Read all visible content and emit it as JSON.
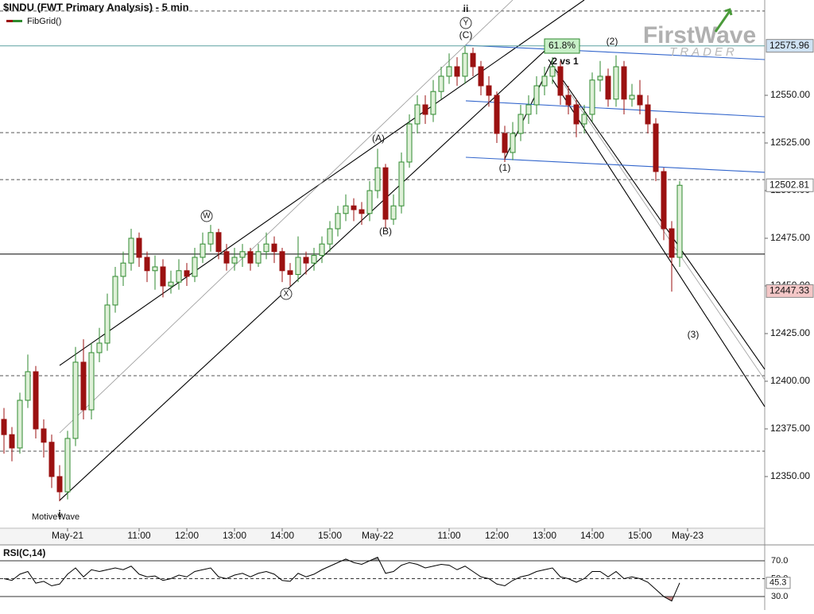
{
  "chart_data": [
    {
      "type": "candlestick",
      "title": "$INDU (FWT Primary Analysis) - 5 min",
      "indicator": "FibGrid()",
      "footer": "MotiveWave",
      "logo": {
        "brand": "FirstWave",
        "sub": "TRADER"
      },
      "x": [
        -80,
        -70,
        -60,
        -50,
        -40,
        -30,
        -20,
        -10,
        0,
        10,
        20,
        30,
        40,
        50,
        60,
        70,
        80,
        90,
        100,
        110,
        120,
        130,
        140,
        150,
        160,
        170,
        180,
        190,
        200,
        210,
        220,
        230,
        240,
        250,
        260,
        270,
        280,
        290,
        300,
        310,
        320,
        330,
        340,
        350,
        360,
        370,
        380,
        390,
        400,
        410,
        420,
        430,
        440,
        450,
        460,
        470,
        480,
        490,
        500,
        510,
        520,
        530,
        540,
        550,
        560,
        570,
        580,
        590,
        600,
        610,
        620,
        630,
        640,
        650,
        660,
        670,
        680,
        690,
        700,
        710,
        720,
        730,
        740,
        750,
        760,
        770
      ],
      "open": [
        12380,
        12372,
        12365,
        12390,
        12405,
        12375,
        12368,
        12350,
        12342,
        12370,
        12410,
        12385,
        12415,
        12420,
        12440,
        12455,
        12462,
        12475,
        12465,
        12458,
        12460,
        12450,
        12452,
        12458,
        12455,
        12465,
        12472,
        12478,
        12468,
        12462,
        12465,
        12468,
        12462,
        12468,
        12472,
        12468,
        12458,
        12456,
        12465,
        12462,
        12466,
        12472,
        12480,
        12488,
        12492,
        12490,
        12488,
        12500,
        12512,
        12485,
        12492,
        12515,
        12535,
        12545,
        12540,
        12552,
        12560,
        12565,
        12560,
        12572,
        12565,
        12555,
        12550,
        12530,
        12520,
        12530,
        12540,
        12545,
        12555,
        12560,
        12565,
        12550,
        12545,
        12535,
        12540,
        12558,
        12560,
        12548,
        12565,
        12548,
        12550,
        12545,
        12535,
        12510,
        12480,
        12465
      ],
      "high": [
        12386,
        12376,
        12394,
        12414,
        12408,
        12380,
        12372,
        12356,
        12374,
        12418,
        12422,
        12420,
        12428,
        12446,
        12460,
        12468,
        12480,
        12478,
        12468,
        12466,
        12464,
        12458,
        12464,
        12462,
        12470,
        12478,
        12482,
        12480,
        12472,
        12470,
        12472,
        12470,
        12472,
        12478,
        12476,
        12470,
        12462,
        12476,
        12468,
        12470,
        12476,
        12484,
        12492,
        12498,
        12496,
        12494,
        12505,
        12522,
        12514,
        12498,
        12520,
        12540,
        12550,
        12550,
        12558,
        12565,
        12572,
        12570,
        12576,
        12575,
        12568,
        12560,
        12552,
        12534,
        12536,
        12545,
        12550,
        12560,
        12565,
        12570,
        12568,
        12555,
        12548,
        12545,
        12562,
        12568,
        12564,
        12571,
        12568,
        12556,
        12558,
        12550,
        12538,
        12512,
        12484,
        12505
      ],
      "low": [
        12362,
        12358,
        12362,
        12386,
        12370,
        12360,
        12344,
        12337,
        12338,
        12366,
        12380,
        12380,
        12410,
        12416,
        12436,
        12450,
        12458,
        12460,
        12452,
        12448,
        12444,
        12446,
        12448,
        12450,
        12452,
        12462,
        12468,
        12464,
        12458,
        12458,
        12460,
        12458,
        12460,
        12464,
        12462,
        12452,
        12450,
        12452,
        12456,
        12458,
        12462,
        12468,
        12476,
        12484,
        12484,
        12482,
        12484,
        12496,
        12480,
        12482,
        12488,
        12512,
        12530,
        12535,
        12536,
        12548,
        12556,
        12555,
        12556,
        12560,
        12550,
        12544,
        12525,
        12515,
        12516,
        12526,
        12535,
        12540,
        12550,
        12556,
        12545,
        12540,
        12528,
        12530,
        12536,
        12552,
        12544,
        12544,
        12540,
        12544,
        12540,
        12530,
        12505,
        12474,
        12447,
        12460
      ],
      "close": [
        12372,
        12365,
        12390,
        12405,
        12375,
        12368,
        12350,
        12342,
        12370,
        12410,
        12385,
        12415,
        12420,
        12440,
        12455,
        12462,
        12475,
        12465,
        12458,
        12460,
        12450,
        12452,
        12458,
        12455,
        12465,
        12472,
        12478,
        12468,
        12462,
        12465,
        12468,
        12462,
        12468,
        12472,
        12468,
        12458,
        12456,
        12465,
        12462,
        12466,
        12472,
        12480,
        12488,
        12492,
        12490,
        12488,
        12500,
        12512,
        12485,
        12492,
        12515,
        12535,
        12545,
        12540,
        12552,
        12560,
        12565,
        12560,
        12572,
        12565,
        12555,
        12550,
        12530,
        12520,
        12530,
        12540,
        12545,
        12555,
        12560,
        12565,
        12550,
        12545,
        12535,
        12540,
        12558,
        12560,
        12548,
        12565,
        12548,
        12550,
        12545,
        12535,
        12510,
        12480,
        12465,
        12502.81
      ],
      "up_color": "#2f8a2f",
      "down_color": "#9b1111",
      "xlim": [
        -85,
        877
      ],
      "ylim": [
        12322.9,
        12600
      ],
      "xticks": [
        {
          "value": 0,
          "label": "May-21"
        },
        {
          "value": 90,
          "label": "11:00"
        },
        {
          "value": 150,
          "label": "12:00"
        },
        {
          "value": 210,
          "label": "13:00"
        },
        {
          "value": 270,
          "label": "14:00"
        },
        {
          "value": 330,
          "label": "15:00"
        },
        {
          "value": 390,
          "label": "May-22"
        },
        {
          "value": 480,
          "label": "11:00"
        },
        {
          "value": 540,
          "label": "12:00"
        },
        {
          "value": 600,
          "label": "13:00"
        },
        {
          "value": 660,
          "label": "14:00"
        },
        {
          "value": 720,
          "label": "15:00"
        },
        {
          "value": 780,
          "label": "May-23"
        }
      ],
      "yticks": [
        {
          "value": 12350,
          "label": "12350.00"
        },
        {
          "value": 12375,
          "label": "12375.00"
        },
        {
          "value": 12400,
          "label": "12400.00"
        },
        {
          "value": 12425,
          "label": "12425.00"
        },
        {
          "value": 12450,
          "label": "12450.00"
        },
        {
          "value": 12475,
          "label": "12475.00"
        },
        {
          "value": 12500,
          "label": "12500.00"
        },
        {
          "value": 12525,
          "label": "12525.00"
        },
        {
          "value": 12550,
          "label": "12550.00"
        }
      ],
      "price_markers": [
        {
          "value": 12575.96,
          "color": "#cfe2f3"
        },
        {
          "value": 12502.81,
          "color": "#ffffff"
        },
        {
          "value": 12447.33,
          "color": "#f4c7c7"
        }
      ],
      "fib_levels": [
        {
          "value": 12594.2,
          "dashed": true
        },
        {
          "value": 12530.4,
          "dashed": true
        },
        {
          "value": 12505.8,
          "dashed": true
        },
        {
          "value": 12466.7,
          "dashed": false
        },
        {
          "value": 12402.9,
          "dashed": true
        },
        {
          "value": 12363.3,
          "dashed": true
        }
      ],
      "trendlines": [
        {
          "x": [
            -10,
            650
          ],
          "y": [
            12408.3,
            12600
          ],
          "color": "#000000"
        },
        {
          "x": [
            -10,
            610
          ],
          "y": [
            12337.5,
            12577.1
          ],
          "color": "#000000"
        },
        {
          "x": [
            -10,
            560
          ],
          "y": [
            12372.9,
            12600
          ],
          "color": "#999999"
        },
        {
          "x": [
            605,
            877
          ],
          "y": [
            12568.75,
            12406.25
          ],
          "color": "#000000"
        },
        {
          "x": [
            610,
            877
          ],
          "y": [
            12564.6,
            12400.8
          ],
          "color": "#999999"
        },
        {
          "x": [
            610,
            877
          ],
          "y": [
            12558.3,
            12386.7
          ],
          "color": "#000000"
        },
        {
          "x": [
            550,
            610
          ],
          "y": [
            12516.7,
            12568.75
          ],
          "color": "#000000"
        },
        {
          "x": [
            501,
            877
          ],
          "y": [
            12576.25,
            12568.75
          ],
          "color": "#3366cc"
        },
        {
          "x": [
            501,
            877
          ],
          "y": [
            12547.1,
            12538.75
          ],
          "color": "#3366cc"
        },
        {
          "x": [
            501,
            877
          ],
          "y": [
            12517.5,
            12509.6
          ],
          "color": "#3366cc"
        }
      ],
      "annotations": [
        "ii",
        "Y",
        "(C)",
        "61.8%",
        "2 vs 1",
        "(2)",
        "(1)",
        "(3)",
        "(A)",
        "(B)",
        "W",
        "X",
        "i"
      ]
    },
    {
      "type": "line",
      "title": "RSI(C,14)",
      "color": "#000000",
      "values": [
        50,
        48,
        55,
        58,
        45,
        47,
        42,
        44,
        55,
        62,
        52,
        60,
        58,
        60,
        62,
        60,
        64,
        55,
        52,
        53,
        48,
        50,
        54,
        52,
        58,
        60,
        62,
        52,
        50,
        54,
        56,
        52,
        56,
        58,
        55,
        48,
        47,
        56,
        52,
        55,
        60,
        64,
        68,
        72,
        68,
        66,
        70,
        74,
        56,
        58,
        65,
        68,
        66,
        62,
        64,
        66,
        65,
        60,
        64,
        58,
        52,
        50,
        44,
        42,
        48,
        52,
        54,
        58,
        60,
        62,
        52,
        50,
        46,
        50,
        58,
        58,
        52,
        58,
        50,
        52,
        50,
        46,
        38,
        30,
        25,
        45.3
      ],
      "value_labels": [
        null,
        null,
        null,
        null,
        null,
        null,
        null,
        null,
        null,
        null,
        null,
        null,
        null,
        null,
        null,
        null,
        null,
        null,
        null,
        null,
        null,
        null,
        null,
        null,
        null,
        null,
        null,
        null,
        null,
        null,
        null,
        null,
        null,
        null,
        null,
        null,
        null,
        null,
        null,
        null,
        null,
        null,
        null,
        null,
        null,
        null,
        null,
        null,
        null,
        null,
        null,
        null,
        null,
        null,
        null,
        null,
        null,
        null,
        null,
        null,
        null,
        null,
        null,
        null,
        null,
        null,
        null,
        null,
        null,
        null,
        null,
        null,
        null,
        null,
        null,
        null,
        null,
        null,
        null,
        null,
        null,
        null,
        null,
        null,
        null,
        "45.3"
      ],
      "ylim": [
        17.6,
        84.2
      ],
      "yticks": [
        {
          "value": 70,
          "label": "70.0"
        },
        {
          "value": 50,
          "label": "50.0"
        },
        {
          "value": 30,
          "label": "30.0"
        }
      ]
    }
  ]
}
